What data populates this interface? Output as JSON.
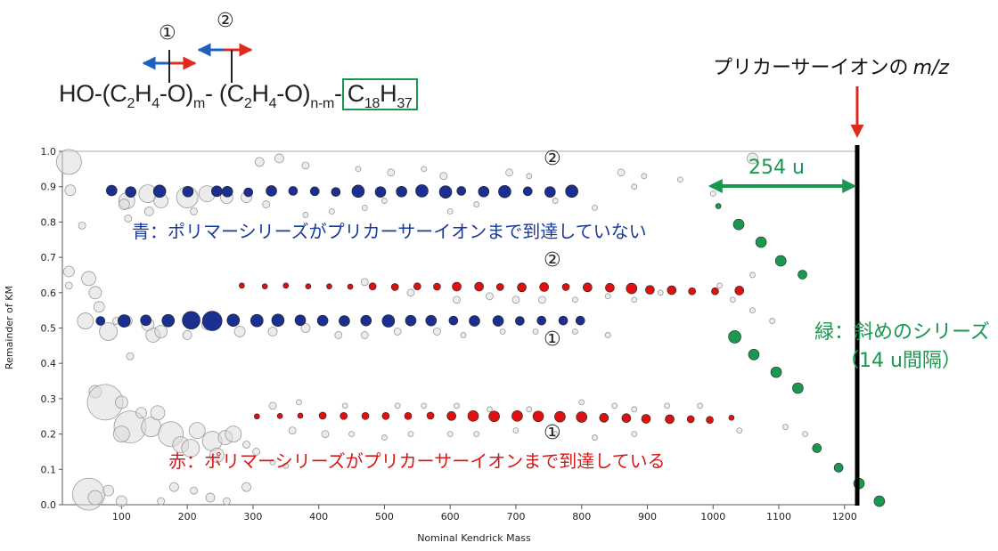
{
  "formula": {
    "ho": "HO-(C",
    "s1": "2",
    "h1": "H",
    "s2": "4",
    "o1": "-O)",
    "m": "m",
    "mid": "- (C",
    "s3": "2",
    "h2": "H",
    "s4": "4",
    "o2": "-O)",
    "nm": "n-m",
    "dash": "-",
    "c": "C",
    "s5": "18",
    "h3": "H",
    "s6": "37"
  },
  "markers": {
    "one": "①",
    "two": "②"
  },
  "annotations": {
    "precursor": "プリカーサーイオンの",
    "precursor_mz": "m/z",
    "blue_note": "青：ポリマーシリーズがプリカーサーイオンまで到達していない",
    "red_note": "赤：ポリマーシリーズがプリカーサーイオンまで到達している",
    "green_note_1": "緑：斜めのシリーズ",
    "green_note_2": "（14 u間隔）",
    "gap": "254 u"
  },
  "colors": {
    "blue": "#1a2f8f",
    "red": "#e01010",
    "green": "#1a9850",
    "gray": "#bbbbbb",
    "arrow_blue": "#1f5fbf",
    "arrow_red": "#e0291f"
  },
  "chart_data": {
    "type": "scatter",
    "xlabel": "Nominal Kendrick Mass",
    "ylabel": "Remainder of KM",
    "xlim": [
      10,
      1222
    ],
    "ylim": [
      0.0,
      1.0
    ],
    "xticks": [
      100,
      200,
      300,
      400,
      500,
      600,
      700,
      800,
      900,
      1000,
      1100,
      1200
    ],
    "yticks": [
      "0.0",
      "0.1",
      "0.2",
      "0.3",
      "0.4",
      "0.5",
      "0.6",
      "0.7",
      "0.8",
      "0.9",
      "1.0"
    ],
    "precursor_x": 1213,
    "series": [
      {
        "name": "blue-upper",
        "color": "blue",
        "points": [
          [
            85,
            0.889
          ],
          [
            114,
            0.885
          ],
          [
            158,
            0.887
          ],
          [
            201,
            0.886
          ],
          [
            245,
            0.887
          ],
          [
            261,
            0.886
          ],
          [
            293,
            0.884
          ],
          [
            328,
            0.888
          ],
          [
            361,
            0.888
          ],
          [
            394,
            0.887
          ],
          [
            426,
            0.885
          ],
          [
            460,
            0.887
          ],
          [
            494,
            0.885
          ],
          [
            526,
            0.886
          ],
          [
            557,
            0.888
          ],
          [
            593,
            0.885
          ],
          [
            617,
            0.888
          ],
          [
            651,
            0.886
          ],
          [
            683,
            0.886
          ],
          [
            718,
            0.887
          ],
          [
            752,
            0.885
          ],
          [
            785,
            0.887
          ]
        ]
      },
      {
        "name": "blue-lower",
        "color": "blue",
        "points": [
          [
            68,
            0.52
          ],
          [
            104,
            0.52
          ],
          [
            137,
            0.522
          ],
          [
            171,
            0.521
          ],
          [
            206,
            0.522
          ],
          [
            238,
            0.52
          ],
          [
            270,
            0.522
          ],
          [
            306,
            0.521
          ],
          [
            338,
            0.522
          ],
          [
            372,
            0.522
          ],
          [
            406,
            0.521
          ],
          [
            439,
            0.52
          ],
          [
            472,
            0.521
          ],
          [
            506,
            0.52
          ],
          [
            540,
            0.521
          ],
          [
            571,
            0.521
          ],
          [
            605,
            0.521
          ],
          [
            637,
            0.52
          ],
          [
            673,
            0.52
          ],
          [
            706,
            0.52
          ],
          [
            739,
            0.521
          ],
          [
            772,
            0.521
          ],
          [
            798,
            0.521
          ]
        ]
      },
      {
        "name": "red-upper",
        "color": "red",
        "points": [
          [
            283,
            0.62
          ],
          [
            318,
            0.618
          ],
          [
            350,
            0.62
          ],
          [
            384,
            0.618
          ],
          [
            416,
            0.618
          ],
          [
            448,
            0.617
          ],
          [
            482,
            0.618
          ],
          [
            516,
            0.616
          ],
          [
            550,
            0.618
          ],
          [
            580,
            0.617
          ],
          [
            610,
            0.617
          ],
          [
            644,
            0.617
          ],
          [
            676,
            0.616
          ],
          [
            709,
            0.615
          ],
          [
            743,
            0.616
          ],
          [
            776,
            0.616
          ],
          [
            809,
            0.615
          ],
          [
            843,
            0.614
          ],
          [
            876,
            0.612
          ],
          [
            904,
            0.608
          ],
          [
            937,
            0.607
          ],
          [
            968,
            0.604
          ],
          [
            1003,
            0.604
          ],
          [
            1040,
            0.606
          ]
        ]
      },
      {
        "name": "red-lower",
        "color": "red",
        "points": [
          [
            306,
            0.25
          ],
          [
            341,
            0.251
          ],
          [
            372,
            0.252
          ],
          [
            406,
            0.252
          ],
          [
            438,
            0.251
          ],
          [
            471,
            0.251
          ],
          [
            502,
            0.251
          ],
          [
            536,
            0.251
          ],
          [
            570,
            0.252
          ],
          [
            602,
            0.251
          ],
          [
            635,
            0.251
          ],
          [
            667,
            0.25
          ],
          [
            702,
            0.251
          ],
          [
            734,
            0.25
          ],
          [
            767,
            0.249
          ],
          [
            800,
            0.248
          ],
          [
            834,
            0.246
          ],
          [
            868,
            0.245
          ],
          [
            898,
            0.243
          ],
          [
            934,
            0.242
          ],
          [
            966,
            0.242
          ],
          [
            995,
            0.24
          ],
          [
            1028,
            0.246
          ]
        ]
      },
      {
        "name": "green-upper",
        "color": "green",
        "points": [
          [
            1008,
            0.845
          ],
          [
            1039,
            0.793
          ],
          [
            1073,
            0.743
          ],
          [
            1103,
            0.69
          ],
          [
            1136,
            0.651
          ]
        ]
      },
      {
        "name": "green-lower",
        "color": "green",
        "points": [
          [
            1033,
            0.475
          ],
          [
            1062,
            0.425
          ],
          [
            1096,
            0.375
          ],
          [
            1129,
            0.33
          ],
          [
            1158,
            0.16
          ],
          [
            1191,
            0.105
          ],
          [
            1222,
            0.06
          ],
          [
            1253,
            0.01
          ]
        ]
      }
    ]
  }
}
